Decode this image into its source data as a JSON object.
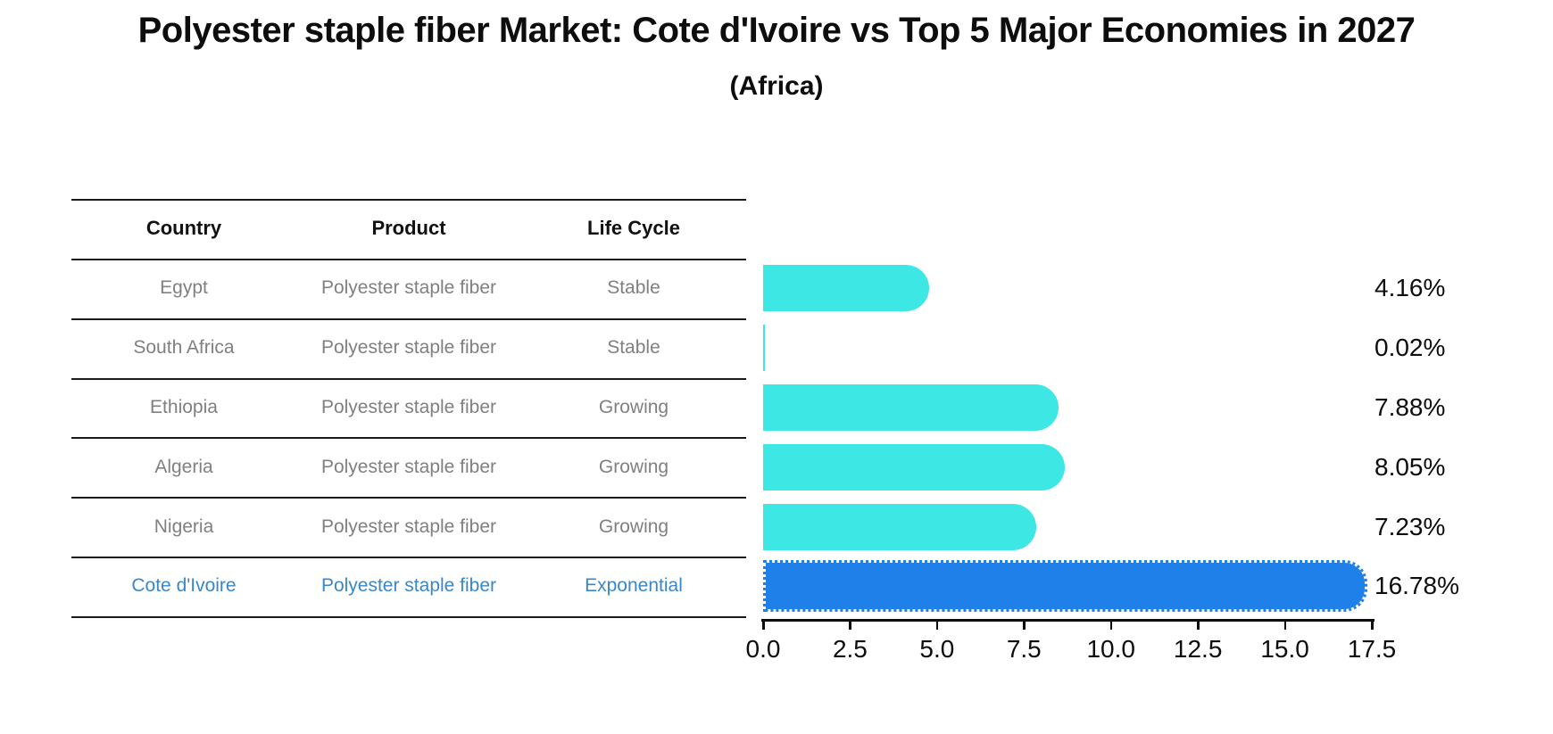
{
  "header": {
    "title": "Polyester staple fiber Market: Cote d'Ivoire vs Top 5 Major Economies in 2027",
    "subtitle": "(Africa)"
  },
  "table": {
    "headers": [
      "Country",
      "Product",
      "Life Cycle"
    ],
    "rows": [
      {
        "country": "Egypt",
        "product": "Polyester staple fiber",
        "life_cycle": "Stable",
        "highlighted": false
      },
      {
        "country": "South Africa",
        "product": "Polyester staple fiber",
        "life_cycle": "Stable",
        "highlighted": false
      },
      {
        "country": "Ethiopia",
        "product": "Polyester staple fiber",
        "life_cycle": "Growing",
        "highlighted": false
      },
      {
        "country": "Algeria",
        "product": "Polyester staple fiber",
        "life_cycle": "Growing",
        "highlighted": false
      },
      {
        "country": "Nigeria",
        "product": "Polyester staple fiber",
        "life_cycle": "Growing",
        "highlighted": false
      },
      {
        "country": "Cote d'Ivoire",
        "product": "Polyester staple fiber",
        "life_cycle": "Exponential",
        "highlighted": true
      }
    ]
  },
  "chart_data": {
    "type": "bar",
    "orientation": "horizontal",
    "title": "Polyester staple fiber Market: Cote d'Ivoire vs Top 5 Major Economies in 2027",
    "subtitle": "(Africa)",
    "categories": [
      "Egypt",
      "South Africa",
      "Ethiopia",
      "Algeria",
      "Nigeria",
      "Cote d'Ivoire"
    ],
    "values": [
      4.16,
      0.02,
      7.88,
      8.05,
      7.23,
      16.78
    ],
    "value_labels": [
      "4.16%",
      "0.02%",
      "7.88%",
      "8.05%",
      "7.23%",
      "16.78%"
    ],
    "xlim": [
      0,
      17.5
    ],
    "x_tick_labels": [
      "0.0",
      "2.5",
      "5.0",
      "7.5",
      "10.0",
      "12.5",
      "15.0",
      "17.5"
    ],
    "grid": false,
    "legend": "none",
    "highlight_index": 5,
    "colors": {
      "bar_default": "#3de7e3",
      "bar_highlight": "#1e80e8",
      "highlight_text": "#3a87c8",
      "table_text": "#808080",
      "table_header_text": "#111111",
      "value_label_text": "#0d0d0d"
    },
    "highlight_bar_edge": "dotted"
  }
}
